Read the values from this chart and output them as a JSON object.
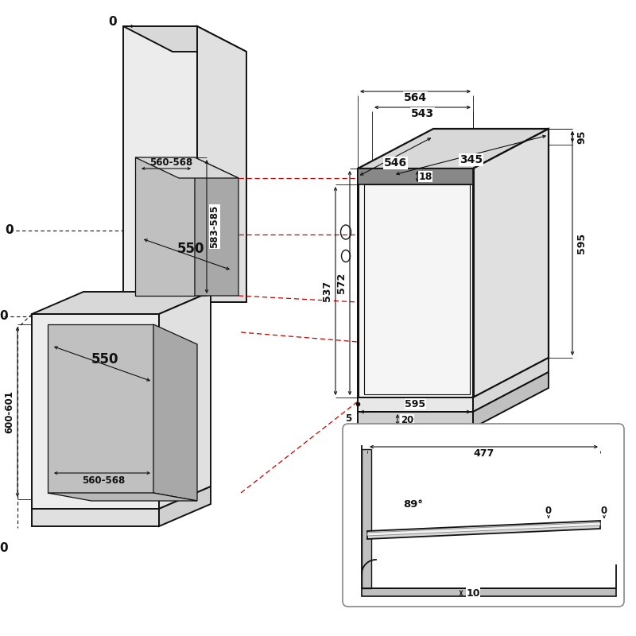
{
  "bg": "#ffffff",
  "lc": "#111111",
  "rc": "#cc0000",
  "g1": "#c0c0c0",
  "g2": "#a8a8a8",
  "g3": "#d8d8d8",
  "g4": "#ececec",
  "g5": "#e0e0e0",
  "dims": {
    "d560_568": "560-568",
    "d583_585": "583-585",
    "d550": "550",
    "d600_601": "600-601",
    "d564": "564",
    "d543": "543",
    "d546": "546",
    "d345": "345",
    "d18": "18",
    "d537": "537",
    "d572": "572",
    "d595h": "595",
    "d595v": "595",
    "d95": "95",
    "d5": "5",
    "d20": "20",
    "d477": "477",
    "d89": "89°",
    "d0": "0",
    "d10": "10"
  }
}
